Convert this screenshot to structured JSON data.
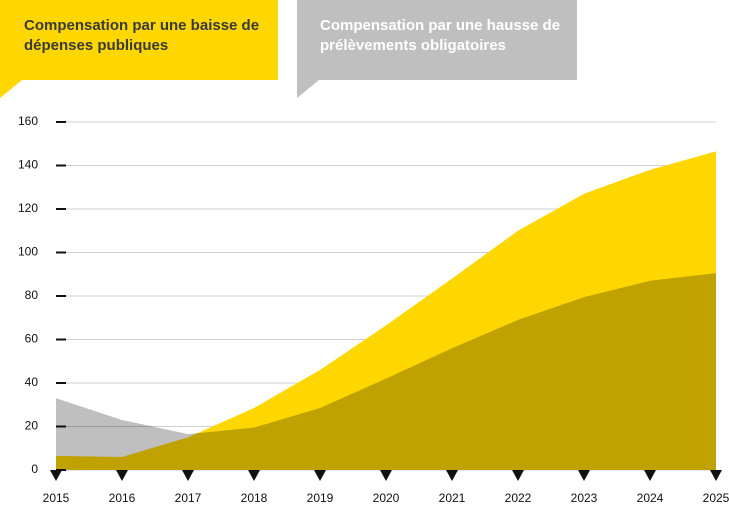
{
  "chart_data": {
    "type": "area",
    "x": [
      2015,
      2016,
      2017,
      2018,
      2019,
      2020,
      2021,
      2022,
      2023,
      2024,
      2025
    ],
    "series": [
      {
        "name": "Compensation par une baisse de dépenses publiques",
        "color": "#ffd700",
        "values": [
          6.5,
          6,
          15,
          28.5,
          46,
          66.5,
          88,
          110,
          127,
          138,
          146.5
        ]
      },
      {
        "name": "Compensation par une hausse de prélèvements obligatoires",
        "color": "#bfbfbf",
        "values": [
          33,
          23,
          16.5,
          19.5,
          28.5,
          42,
          56,
          69,
          79.5,
          87,
          90.5
        ]
      }
    ],
    "xlim": [
      2015,
      2025
    ],
    "xticks": [
      2015,
      2016,
      2017,
      2018,
      2019,
      2020,
      2021,
      2022,
      2023,
      2024,
      2025
    ],
    "ylim": [
      0,
      160
    ],
    "yticks": [
      0,
      20,
      40,
      60,
      80,
      100,
      120,
      140,
      160
    ],
    "grid": true
  }
}
